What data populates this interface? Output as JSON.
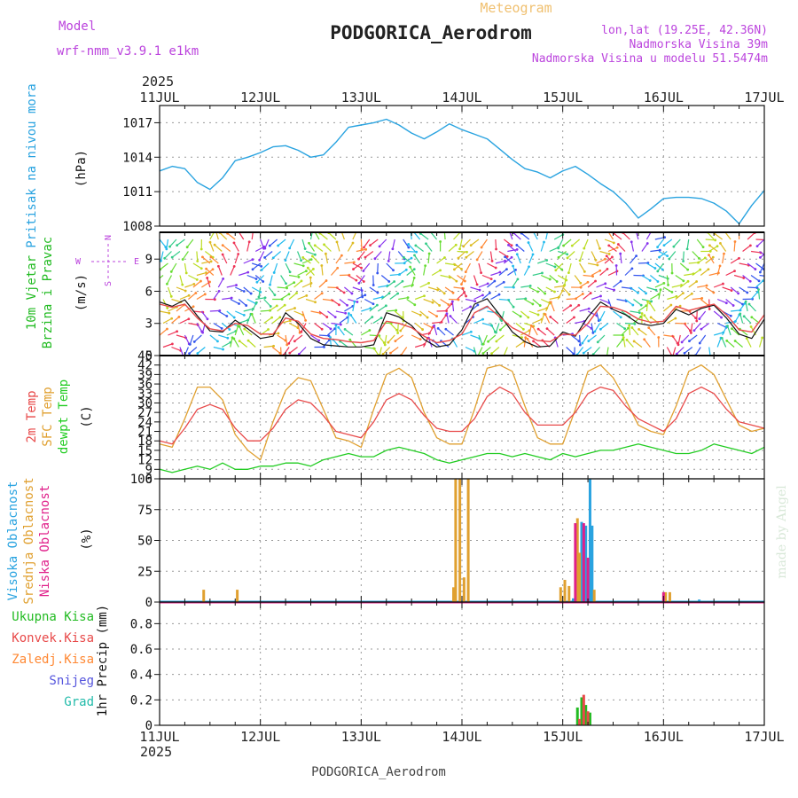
{
  "header": {
    "model_label": "Model",
    "model_name": "wrf-nmm_v3.9.1 e1km",
    "product": "Meteogram",
    "station": "PODGORICA_Aerodrom",
    "lonlat": "lon,lat (19.25E, 42.36N)",
    "elevation": "Nadmorska Visina 39m",
    "model_elevation": "Nadmorska Visina u modelu 51.5474m",
    "year": "2025",
    "footer_station": "PODGORICA_Aerodrom",
    "credit": "made by Angel"
  },
  "time_axis": {
    "labels": [
      "11JUL",
      "12JUL",
      "13JUL",
      "14JUL",
      "15JUL",
      "16JUL",
      "17JUL"
    ],
    "start_hour": 0,
    "end_hour": 144
  },
  "colors": {
    "pressure": "#29a3e0",
    "wind_label": "#22bb22",
    "dir_label": "#bb44dd",
    "t2m": "#e84a4a",
    "sfc_t": "#e0a030",
    "dewpt": "#22cc22",
    "cloud_high": "#29a3e0",
    "cloud_mid": "#e0a030",
    "cloud_low": "#e0208a",
    "total_precip": "#22bb22",
    "conv_precip": "#e84a4a",
    "frozen": "#ff8833",
    "snow": "#5555dd",
    "graupel": "#22bbaa"
  },
  "chart_data": [
    {
      "type": "line",
      "panel": "pressure",
      "ylabel": [
        "Pritisak na nivou mora",
        "(hPa)"
      ],
      "yticks": [
        1008,
        1011,
        1014,
        1017
      ],
      "ylim": [
        1008,
        1018.5
      ],
      "x": [
        0,
        3,
        6,
        9,
        12,
        15,
        18,
        21,
        24,
        27,
        30,
        33,
        36,
        39,
        42,
        45,
        48,
        51,
        54,
        57,
        60,
        63,
        66,
        69,
        72,
        75,
        78,
        81,
        84,
        87,
        90,
        93,
        96,
        99,
        102,
        105,
        108,
        111,
        114,
        117,
        120,
        123,
        126,
        129,
        132,
        135,
        138,
        141,
        144
      ],
      "series": [
        {
          "name": "",
          "values": [
            1012.8,
            1013.2,
            1013.0,
            1011.8,
            1011.2,
            1012.2,
            1013.7,
            1014.0,
            1014.4,
            1014.9,
            1015.0,
            1014.6,
            1014.0,
            1014.2,
            1015.3,
            1016.6,
            1016.8,
            1017.0,
            1017.3,
            1016.8,
            1016.1,
            1015.6,
            1016.2,
            1016.9,
            1016.4,
            1016.0,
            1015.6,
            1014.7,
            1013.8,
            1013.0,
            1012.7,
            1012.2,
            1012.8,
            1013.2,
            1012.5,
            1011.7,
            1011.0,
            1010.0,
            1008.7,
            1009.5,
            1010.4,
            1010.5,
            1010.5,
            1010.4,
            1010.0,
            1009.3,
            1008.2,
            1009.8,
            1011.1
          ]
        }
      ]
    },
    {
      "type": "line",
      "panel": "wind",
      "ylabel": [
        "10m Vjetar",
        "Brzina i Pravac",
        "(m/s)"
      ],
      "direction_key": [
        "N",
        "W",
        "E",
        "S"
      ],
      "yticks": [
        0,
        3,
        6,
        9
      ],
      "ylim": [
        0,
        11.5
      ],
      "x": [
        0,
        3,
        6,
        9,
        12,
        15,
        18,
        21,
        24,
        27,
        30,
        33,
        36,
        39,
        42,
        45,
        48,
        51,
        54,
        57,
        60,
        63,
        66,
        69,
        72,
        75,
        78,
        81,
        84,
        87,
        90,
        93,
        96,
        99,
        102,
        105,
        108,
        111,
        114,
        117,
        120,
        123,
        126,
        129,
        132,
        135,
        138,
        141,
        144
      ],
      "series": [
        {
          "name": "",
          "values": [
            4.8,
            4.5,
            4.8,
            3.5,
            2.5,
            2.3,
            3.0,
            2.8,
            2.0,
            2.0,
            3.5,
            3.2,
            2.0,
            1.6,
            1.5,
            1.3,
            1.2,
            1.4,
            3.2,
            3.0,
            2.6,
            1.8,
            1.2,
            1.4,
            2.0,
            4.0,
            4.6,
            3.6,
            2.6,
            2.0,
            1.4,
            1.3,
            2.0,
            1.9,
            3.0,
            4.6,
            4.5,
            4.1,
            3.4,
            3.1,
            3.2,
            4.6,
            4.2,
            4.5,
            4.8,
            3.8,
            2.4,
            2.2,
            3.8
          ]
        },
        {
          "name": "",
          "values": [
            5.0,
            4.6,
            5.2,
            3.7,
            2.3,
            2.2,
            3.3,
            2.5,
            1.6,
            1.8,
            4.0,
            3.0,
            1.6,
            1.0,
            0.9,
            0.8,
            0.8,
            1.0,
            4.0,
            3.6,
            2.8,
            1.5,
            0.8,
            1.0,
            2.4,
            4.8,
            5.3,
            3.8,
            2.2,
            1.3,
            0.8,
            0.9,
            2.2,
            1.8,
            3.6,
            5.0,
            4.3,
            3.8,
            3.0,
            2.8,
            3.0,
            4.3,
            3.8,
            4.4,
            4.7,
            3.5,
            2.0,
            1.6,
            3.4
          ]
        }
      ]
    },
    {
      "type": "line",
      "panel": "temperature",
      "ylabel": [
        "2m Temp",
        "SFC Temp",
        "dewpt Temp",
        "(C)"
      ],
      "yticks": [
        6,
        9,
        12,
        15,
        18,
        21,
        24,
        27,
        30,
        33,
        36,
        39,
        42,
        45
      ],
      "ylim": [
        6,
        45
      ],
      "x": [
        0,
        3,
        6,
        9,
        12,
        15,
        18,
        21,
        24,
        27,
        30,
        33,
        36,
        39,
        42,
        45,
        48,
        51,
        54,
        57,
        60,
        63,
        66,
        69,
        72,
        75,
        78,
        81,
        84,
        87,
        90,
        93,
        96,
        99,
        102,
        105,
        108,
        111,
        114,
        117,
        120,
        123,
        126,
        129,
        132,
        135,
        138,
        141,
        144
      ],
      "series": [
        {
          "name": "",
          "values": [
            18,
            17,
            22,
            28,
            29.5,
            28,
            22,
            18,
            18,
            22,
            28,
            31,
            30,
            26,
            21,
            20,
            19,
            24,
            31,
            33,
            31,
            26,
            22,
            21,
            21,
            25,
            32,
            35,
            33,
            27,
            23,
            23,
            23,
            27,
            33,
            35,
            34,
            29,
            25,
            23,
            21,
            25,
            33,
            35,
            33,
            28,
            24,
            23,
            22
          ]
        },
        {
          "name": "",
          "values": [
            17,
            16,
            25,
            35,
            35,
            31,
            20,
            15,
            12,
            24,
            34,
            38,
            37,
            28,
            19,
            18,
            16,
            28,
            39,
            41,
            38,
            27,
            19,
            17,
            17,
            28,
            41,
            42,
            40,
            29,
            19,
            17,
            17,
            28,
            40,
            42,
            38,
            31,
            23,
            21,
            20,
            29,
            40,
            42,
            39,
            31,
            23,
            21,
            22
          ]
        },
        {
          "name": "",
          "values": [
            9,
            8,
            9,
            10,
            9,
            11,
            9,
            9,
            10,
            10,
            11,
            11,
            10,
            12,
            13,
            14,
            13,
            13,
            15,
            16,
            15,
            14,
            12,
            11,
            12,
            13,
            14,
            14,
            13,
            14,
            13,
            12,
            14,
            13,
            14,
            15,
            15,
            16,
            17,
            16,
            15,
            14,
            14,
            15,
            17,
            16,
            15,
            14,
            16
          ]
        }
      ]
    },
    {
      "type": "bar",
      "panel": "clouds",
      "ylabel": [
        "Visoka Oblacnost",
        "Srednja Oblacnost",
        "Niska Oblacnost",
        "(%)"
      ],
      "yticks": [
        0,
        25,
        50,
        75,
        100
      ],
      "ylim": [
        0,
        100
      ],
      "series": [
        {
          "name": "",
          "x": [
            98.5,
            99.5,
            100.5,
            101.5,
            102.5,
            103.0,
            128.5
          ],
          "values": [
            3,
            2,
            65,
            62,
            100,
            62,
            2
          ]
        },
        {
          "name": "",
          "x": [
            10.5,
            18.5,
            70,
            70.5,
            71.5,
            72.5,
            73.5,
            95.5,
            96.5,
            97.5,
            99.5,
            100.0,
            103.5,
            120.5,
            121.5
          ],
          "values": [
            10,
            10,
            12,
            100,
            100,
            20,
            100,
            12,
            18,
            13,
            68,
            40,
            10,
            8,
            8
          ]
        },
        {
          "name": "",
          "x": [
            99.0,
            101.0,
            102.0,
            120.0
          ],
          "values": [
            64,
            64,
            36,
            8
          ]
        }
      ]
    },
    {
      "type": "bar",
      "panel": "precipitation",
      "ylabel": [
        "1hr Precip (mm)"
      ],
      "legend": [
        "Ukupna Kisa",
        "Konvek.Kisa",
        "Zaledj.Kisa",
        "Snijeg",
        "Grad"
      ],
      "yticks": [
        0,
        0.2,
        0.4,
        0.6,
        0.8
      ],
      "ylim": [
        0,
        0.97
      ],
      "series": [
        {
          "name": "Ukupna Kisa",
          "x": [
            99.5,
            100.5,
            101.5,
            102.5
          ],
          "values": [
            0.14,
            0.22,
            0.16,
            0.1
          ]
        },
        {
          "name": "Konvek.Kisa",
          "x": [
            100.0,
            101.0,
            102.0
          ],
          "values": [
            0.05,
            0.24,
            0.11
          ]
        }
      ]
    }
  ]
}
